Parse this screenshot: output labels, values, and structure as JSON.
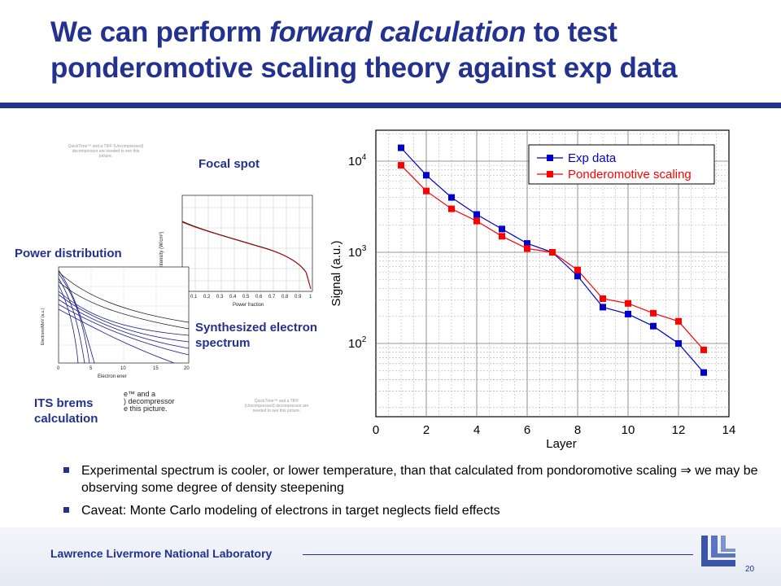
{
  "slide": {
    "title_part1": "We can perform ",
    "title_emph": "forward calculation",
    "title_part2": " to test ponderomotive scaling theory against exp data",
    "labels": {
      "focal_spot": "Focal spot",
      "power_distribution": "Power distribution",
      "synthesized": "Synthesized electron spectrum",
      "its_brems": "ITS brems calculation"
    },
    "bullets": [
      "Experimental spectrum is cooler, or lower temperature, than that calculated from pondoromotive scaling ⇒ we may be observing some degree of density steepening",
      "Caveat: Monte Carlo modeling of electrons in target neglects field effects"
    ],
    "footer": "Lawrence Livermore National Laboratory",
    "page_number": "20",
    "placeholder_text": "QuickTime™ and a TIFF (Uncompressed) decompressor are needed to see this picture.",
    "placeholder_crop_left": "e™ and a\n) decompressor\ne this picture.",
    "colors": {
      "title": "#23318f",
      "exp": "#0000cc",
      "pond": "#ff0000"
    }
  },
  "chart_data": {
    "type": "line",
    "xlabel": "Layer",
    "ylabel": "Signal (a.u.)",
    "xlim": [
      0,
      14
    ],
    "x_ticks": [
      0,
      2,
      4,
      6,
      8,
      10,
      12,
      14
    ],
    "y_scale": "log",
    "y_ticks": [
      "10^4",
      "10^3",
      "10^2"
    ],
    "grid": true,
    "legend": "top-right",
    "series": [
      {
        "name": "Exp data",
        "color": "#0000cc",
        "x": [
          1,
          2,
          3,
          4,
          5,
          6,
          7,
          8,
          9,
          10,
          11,
          12,
          13
        ],
        "y": [
          14000,
          7000,
          4000,
          2600,
          1800,
          1250,
          1000,
          550,
          250,
          210,
          155,
          100,
          48
        ]
      },
      {
        "name": "Ponderomotive scaling",
        "color": "#ff0000",
        "x": [
          1,
          2,
          3,
          4,
          5,
          6,
          7,
          8,
          9,
          10,
          11,
          12,
          13
        ],
        "y": [
          9000,
          4700,
          3000,
          2200,
          1500,
          1100,
          1000,
          640,
          310,
          275,
          215,
          175,
          85
        ]
      }
    ]
  },
  "small_plots": {
    "focal_spot": {
      "xlabel": "Power fraction",
      "ylabel": "Intensity (W/cm²)",
      "x_ticks": [
        "0",
        "0.1",
        "0.2",
        "0.3",
        "0.4",
        "0.5",
        "0.6",
        "0.7",
        "0.8",
        "0.9",
        "1"
      ]
    },
    "power_distribution": {
      "xlabel": "Electron ener",
      "ylabel": "Electrons/MeV (a.u.)",
      "x_ticks": [
        "0",
        "5",
        "10",
        "15",
        "20"
      ]
    }
  }
}
